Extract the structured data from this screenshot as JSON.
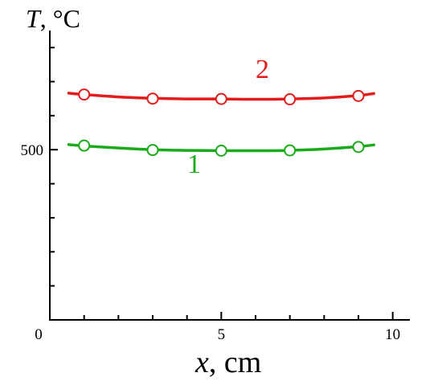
{
  "chart_data": {
    "type": "line",
    "ylabel_var": "T",
    "ylabel_unit": ", °C",
    "xlabel_var": "x",
    "xlabel_unit": ", cm",
    "xlim": [
      0,
      10.5
    ],
    "ylim": [
      0,
      850
    ],
    "x_ticks": [
      {
        "value": 0,
        "label": "0"
      },
      {
        "value": 5,
        "label": "5"
      },
      {
        "value": 10,
        "label": "10"
      }
    ],
    "y_ticks": [
      {
        "value": 500,
        "label": "500"
      }
    ],
    "series": [
      {
        "name": "1",
        "color": "#1aab1a",
        "markers": [
          {
            "x": 1.0,
            "y": 512
          },
          {
            "x": 3.0,
            "y": 499
          },
          {
            "x": 5.0,
            "y": 497
          },
          {
            "x": 7.0,
            "y": 498
          },
          {
            "x": 9.0,
            "y": 508
          }
        ],
        "curve": [
          {
            "x": 0.55,
            "y": 515
          },
          {
            "x": 1.0,
            "y": 511
          },
          {
            "x": 2.0,
            "y": 505
          },
          {
            "x": 3.0,
            "y": 500
          },
          {
            "x": 4.0,
            "y": 498
          },
          {
            "x": 5.0,
            "y": 497
          },
          {
            "x": 6.0,
            "y": 497
          },
          {
            "x": 7.0,
            "y": 498
          },
          {
            "x": 8.0,
            "y": 502
          },
          {
            "x": 9.0,
            "y": 509
          },
          {
            "x": 9.45,
            "y": 514
          }
        ]
      },
      {
        "name": "2",
        "color": "#e31b1b",
        "markers": [
          {
            "x": 1.0,
            "y": 662
          },
          {
            "x": 3.0,
            "y": 650
          },
          {
            "x": 5.0,
            "y": 649
          },
          {
            "x": 7.0,
            "y": 648
          },
          {
            "x": 9.0,
            "y": 658
          }
        ],
        "curve": [
          {
            "x": 0.55,
            "y": 666
          },
          {
            "x": 1.0,
            "y": 662
          },
          {
            "x": 2.0,
            "y": 655
          },
          {
            "x": 3.0,
            "y": 651
          },
          {
            "x": 4.0,
            "y": 649
          },
          {
            "x": 5.0,
            "y": 649
          },
          {
            "x": 6.0,
            "y": 648
          },
          {
            "x": 7.0,
            "y": 649
          },
          {
            "x": 8.0,
            "y": 652
          },
          {
            "x": 9.0,
            "y": 659
          },
          {
            "x": 9.45,
            "y": 665
          }
        ]
      }
    ]
  }
}
